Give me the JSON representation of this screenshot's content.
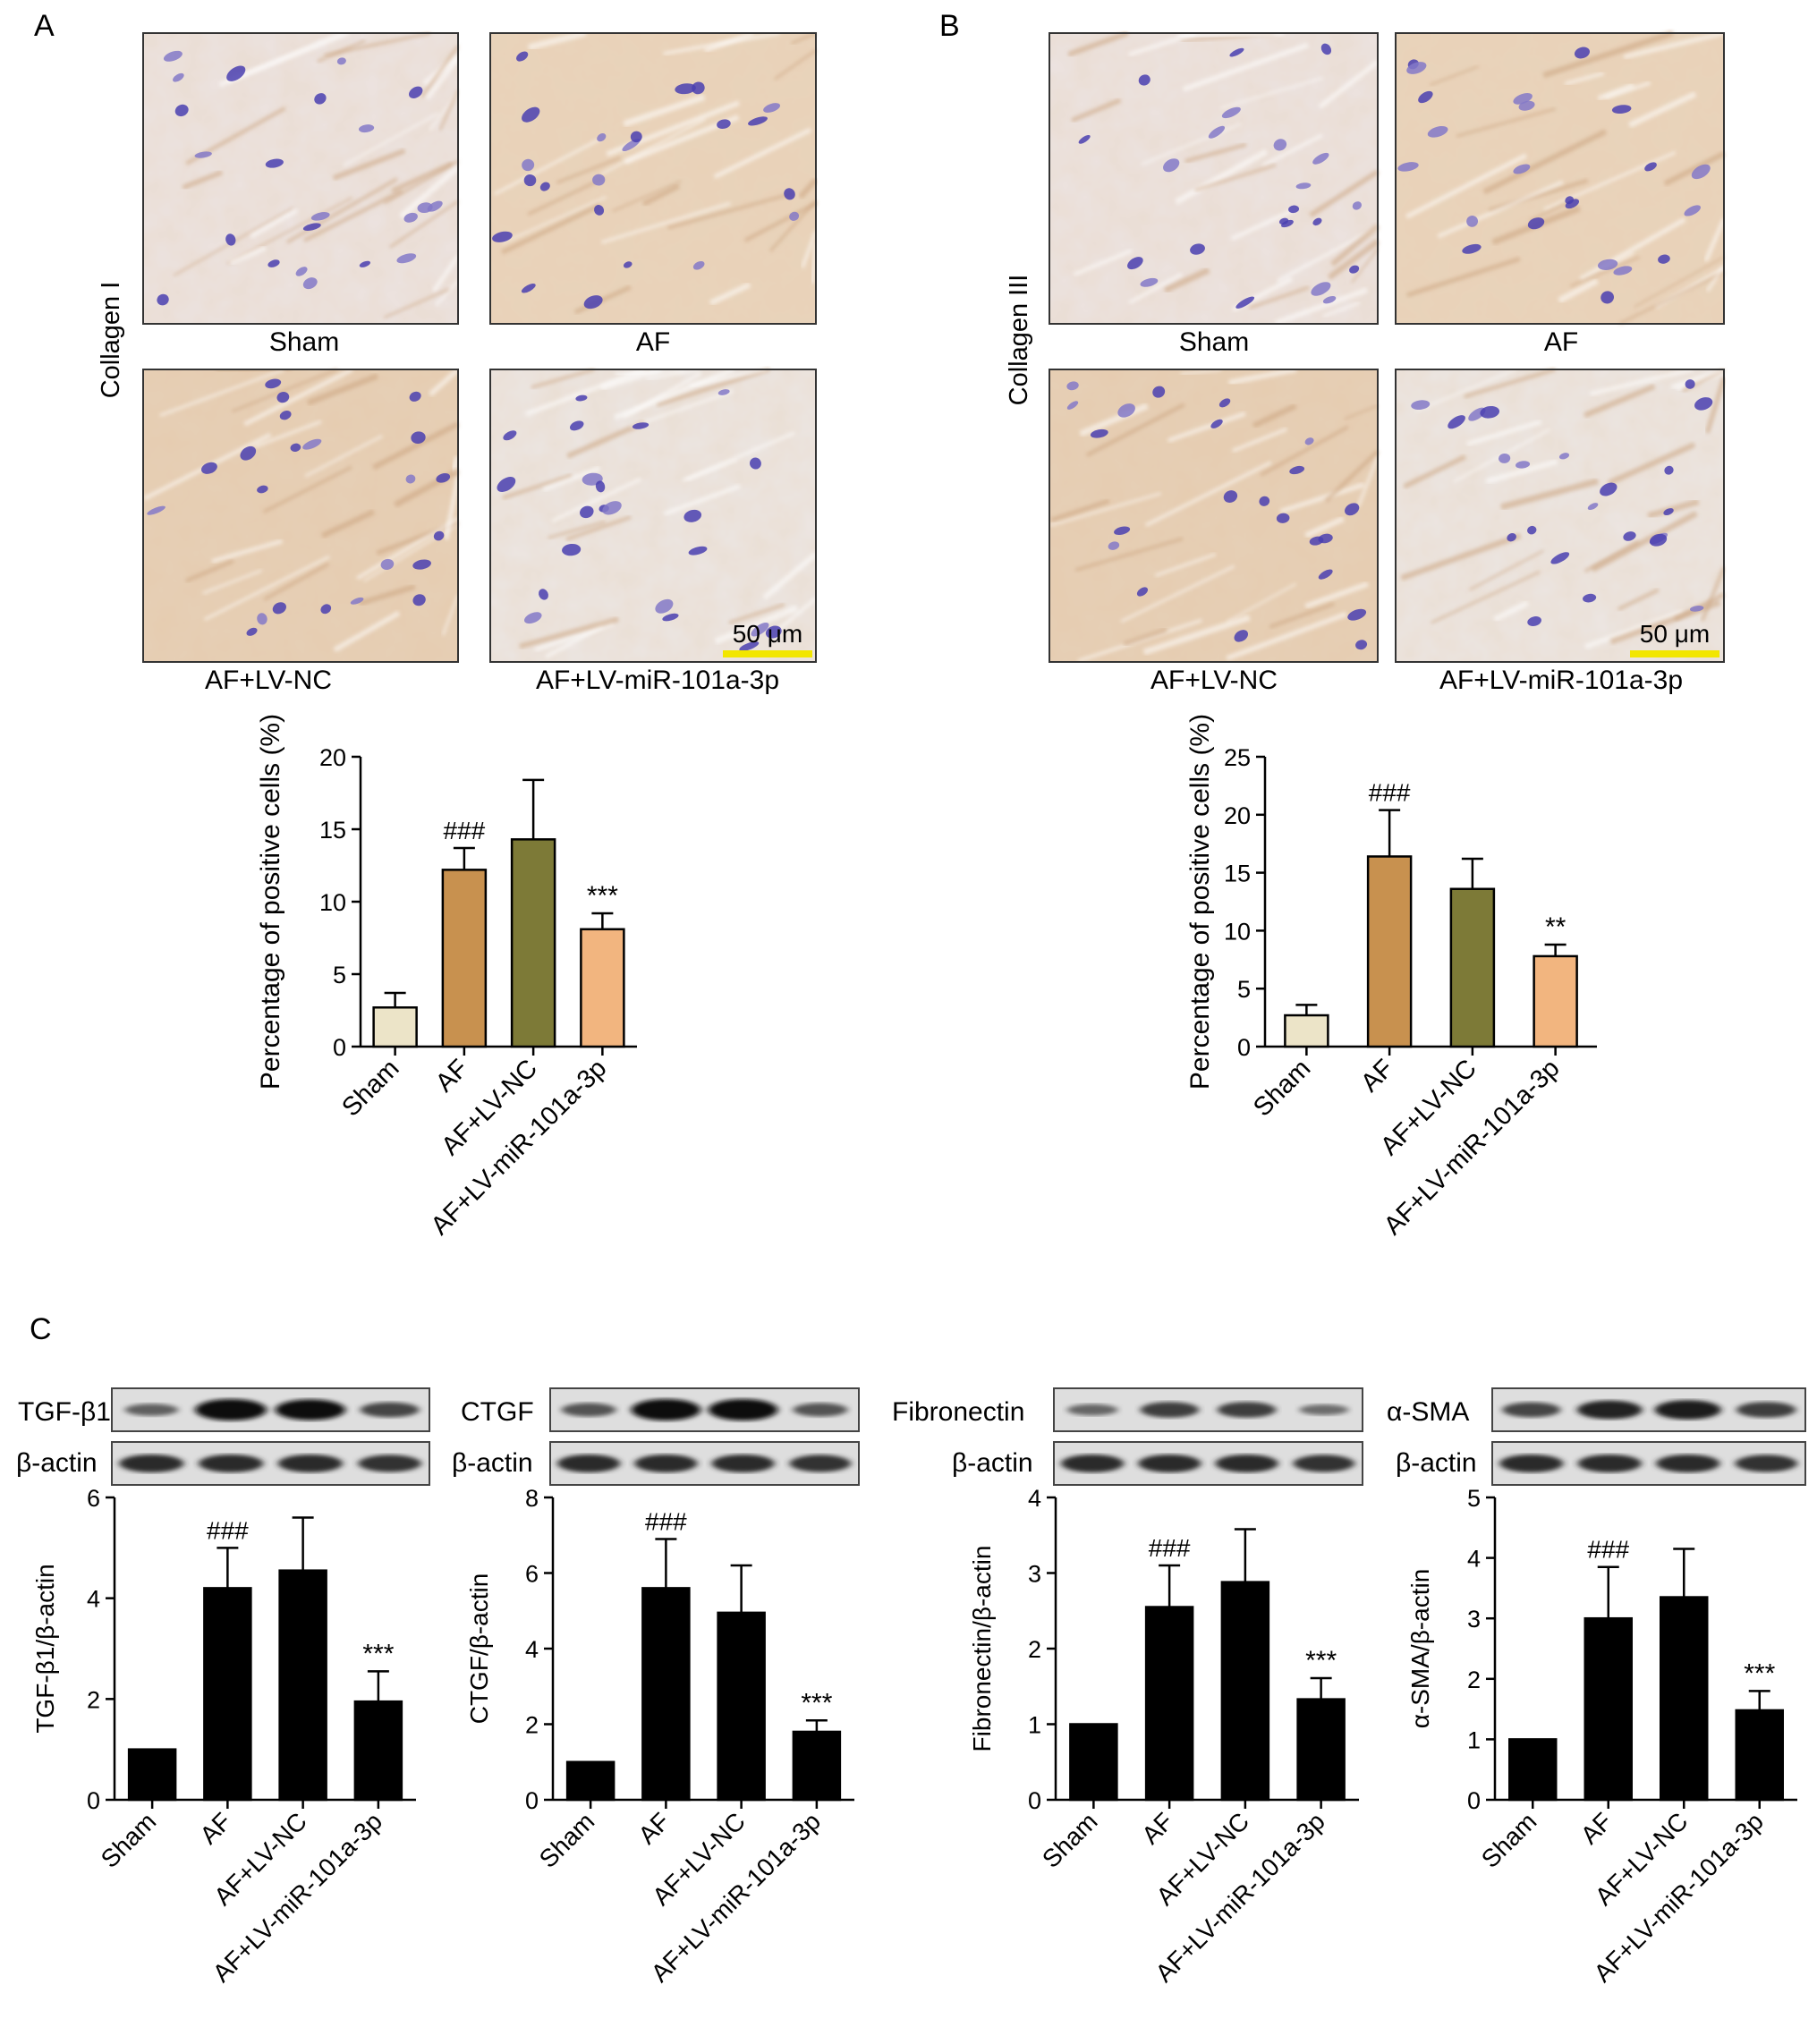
{
  "panels": {
    "A": {
      "letter": "A",
      "stain_label": "Collagen I",
      "image_labels": [
        "Sham",
        "AF",
        "AF+LV-NC",
        "AF+LV-miR-101a-3p"
      ],
      "scale_bar": "50 μm"
    },
    "B": {
      "letter": "B",
      "stain_label": "Collagen III",
      "image_labels": [
        "Sham",
        "AF",
        "AF+LV-NC",
        "AF+LV-miR-101a-3p"
      ],
      "scale_bar": "50 μm"
    },
    "C": {
      "letter": "C",
      "blots": [
        {
          "target": "TGF-β1",
          "loading": "β-actin",
          "intensity": [
            0.35,
            1.0,
            0.95,
            0.55
          ]
        },
        {
          "target": "CTGF",
          "loading": "β-actin",
          "intensity": [
            0.45,
            1.0,
            1.0,
            0.45
          ]
        },
        {
          "target": "Fibronectin",
          "loading": "β-actin",
          "intensity": [
            0.3,
            0.6,
            0.6,
            0.25
          ]
        },
        {
          "target": "α-SMA",
          "loading": "β-actin",
          "intensity": [
            0.55,
            0.8,
            0.85,
            0.6
          ]
        }
      ]
    }
  },
  "chart_data": [
    {
      "id": "A-bar",
      "type": "bar",
      "categories": [
        "Sham",
        "AF",
        "AF+LV-NC",
        "AF+LV-miR-101a-3p"
      ],
      "values": [
        2.7,
        12.2,
        14.3,
        8.1
      ],
      "errors": [
        1.0,
        1.5,
        4.1,
        1.1
      ],
      "annotations": [
        "",
        "###",
        "",
        "***"
      ],
      "ylabel": "Percentage of positive cells (%)",
      "ylim": [
        0,
        20
      ],
      "yticks": [
        0,
        5,
        10,
        15,
        20
      ],
      "colors": [
        "#ece4c8",
        "#c8914f",
        "#7d7a37",
        "#f2b57f"
      ]
    },
    {
      "id": "B-bar",
      "type": "bar",
      "categories": [
        "Sham",
        "AF",
        "AF+LV-NC",
        "AF+LV-miR-101a-3p"
      ],
      "values": [
        2.7,
        16.4,
        13.6,
        7.8
      ],
      "errors": [
        0.9,
        4.0,
        2.6,
        1.0
      ],
      "annotations": [
        "",
        "###",
        "",
        "**"
      ],
      "ylabel": "Percentage of positive cells (%)",
      "ylim": [
        0,
        25
      ],
      "yticks": [
        0,
        5,
        10,
        15,
        20,
        25
      ],
      "colors": [
        "#ece4c8",
        "#c8914f",
        "#7d7a37",
        "#f2b57f"
      ]
    },
    {
      "id": "C1-bar",
      "type": "bar",
      "categories": [
        "Sham",
        "AF",
        "AF+LV-NC",
        "AF+LV-miR-101a-3p"
      ],
      "values": [
        1.0,
        4.2,
        4.55,
        1.95
      ],
      "errors": [
        0,
        0.8,
        1.05,
        0.6
      ],
      "annotations": [
        "",
        "###",
        "",
        "***"
      ],
      "ylabel": "TGF-β1/β-actin",
      "ylim": [
        0,
        6
      ],
      "yticks": [
        0,
        2,
        4,
        6
      ],
      "colors": [
        "#000000",
        "#000000",
        "#000000",
        "#000000"
      ]
    },
    {
      "id": "C2-bar",
      "type": "bar",
      "categories": [
        "Sham",
        "AF",
        "AF+LV-NC",
        "AF+LV-miR-101a-3p"
      ],
      "values": [
        1.0,
        5.6,
        4.95,
        1.8
      ],
      "errors": [
        0,
        1.3,
        1.25,
        0.3
      ],
      "annotations": [
        "",
        "###",
        "",
        "***"
      ],
      "ylabel": "CTGF/β-actin",
      "ylim": [
        0,
        8
      ],
      "yticks": [
        0,
        2,
        4,
        6,
        8
      ],
      "colors": [
        "#000000",
        "#000000",
        "#000000",
        "#000000"
      ]
    },
    {
      "id": "C3-bar",
      "type": "bar",
      "categories": [
        "Sham",
        "AF",
        "AF+LV-NC",
        "AF+LV-miR-101a-3p"
      ],
      "values": [
        1.0,
        2.55,
        2.88,
        1.33
      ],
      "errors": [
        0,
        0.55,
        0.7,
        0.28
      ],
      "annotations": [
        "",
        "###",
        "",
        "***"
      ],
      "ylabel": "Fibronectin/β-actin",
      "ylim": [
        0,
        4
      ],
      "yticks": [
        0,
        1,
        2,
        3,
        4
      ],
      "colors": [
        "#000000",
        "#000000",
        "#000000",
        "#000000"
      ]
    },
    {
      "id": "C4-bar",
      "type": "bar",
      "categories": [
        "Sham",
        "AF",
        "AF+LV-NC",
        "AF+LV-miR-101a-3p"
      ],
      "values": [
        1.0,
        3.0,
        3.35,
        1.48
      ],
      "errors": [
        0,
        0.85,
        0.8,
        0.32
      ],
      "annotations": [
        "",
        "###",
        "",
        "***"
      ],
      "ylabel": "α-SMA/β-actin",
      "ylim": [
        0,
        5
      ],
      "yticks": [
        0,
        1,
        2,
        3,
        4,
        5
      ],
      "colors": [
        "#000000",
        "#000000",
        "#000000",
        "#000000"
      ]
    }
  ]
}
